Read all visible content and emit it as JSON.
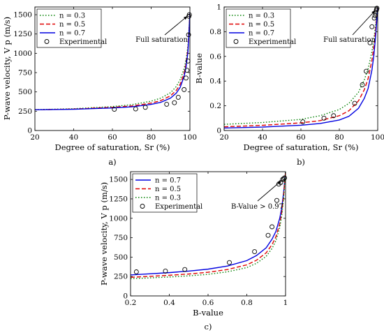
{
  "chart_data": [
    {
      "type": "line",
      "panel_label": "a)",
      "xlabel": "Degree of saturation, Sr (%)",
      "ylabel": "P-wave velocity, V p (m/s)",
      "xlim": [
        20,
        100
      ],
      "ylim": [
        0,
        1600
      ],
      "xticks": [
        20,
        40,
        60,
        80,
        100
      ],
      "yticks": [
        0,
        250,
        500,
        750,
        1000,
        1250,
        1500
      ],
      "legend_position": "top-left",
      "annotation": {
        "text": "Full saturation",
        "arrow_to": [
          99.5,
          1510
        ]
      },
      "series": [
        {
          "name": "n = 0.3",
          "color": "#008000",
          "dash": "dotted",
          "x": [
            20,
            40,
            60,
            70,
            80,
            85,
            90,
            93,
            95,
            97,
            98,
            99,
            99.5,
            100
          ],
          "y": [
            270,
            282,
            310,
            335,
            380,
            420,
            490,
            570,
            660,
            800,
            910,
            1100,
            1300,
            1530
          ]
        },
        {
          "name": "n = 0.5",
          "color": "#e00000",
          "dash": "dashed",
          "x": [
            20,
            40,
            60,
            70,
            80,
            85,
            90,
            93,
            95,
            97,
            98,
            99,
            99.5,
            100
          ],
          "y": [
            268,
            278,
            300,
            318,
            355,
            388,
            450,
            520,
            600,
            740,
            860,
            1060,
            1280,
            1530
          ]
        },
        {
          "name": "n = 0.7",
          "color": "#0000e0",
          "dash": "solid",
          "x": [
            20,
            40,
            60,
            70,
            80,
            85,
            90,
            93,
            95,
            97,
            98,
            99,
            99.5,
            100
          ],
          "y": [
            268,
            275,
            292,
            307,
            338,
            365,
            420,
            485,
            560,
            700,
            820,
            1020,
            1250,
            1530
          ]
        },
        {
          "name": "Experimental",
          "color": "#000000",
          "marker": "circle",
          "x": [
            61,
            72,
            77,
            88,
            92,
            94,
            97,
            98,
            98.5,
            99,
            99.3,
            99.5,
            99.7
          ],
          "y": [
            275,
            280,
            300,
            340,
            360,
            430,
            530,
            680,
            780,
            900,
            1240,
            1480,
            1500
          ]
        }
      ]
    },
    {
      "type": "line",
      "panel_label": "b)",
      "xlabel": "Degree of saturation, Sr (%)",
      "ylabel": "B-value",
      "xlim": [
        20,
        100
      ],
      "ylim": [
        0,
        1
      ],
      "xticks": [
        20,
        40,
        60,
        80,
        100
      ],
      "yticks": [
        0,
        0.2,
        0.4,
        0.6,
        0.8,
        1
      ],
      "legend_position": "top-left",
      "annotation": {
        "text": "Full saturation",
        "arrow_to": [
          99.5,
          0.99
        ]
      },
      "series": [
        {
          "name": "n = 0.3",
          "color": "#008000",
          "dash": "dotted",
          "x": [
            20,
            40,
            60,
            70,
            80,
            85,
            90,
            93,
            95,
            97,
            98,
            99,
            99.5,
            100
          ],
          "y": [
            0.05,
            0.065,
            0.09,
            0.12,
            0.17,
            0.22,
            0.31,
            0.41,
            0.5,
            0.64,
            0.74,
            0.87,
            0.94,
            1.0
          ]
        },
        {
          "name": "n = 0.5",
          "color": "#e00000",
          "dash": "dashed",
          "x": [
            20,
            40,
            60,
            70,
            80,
            85,
            90,
            93,
            95,
            97,
            98,
            99,
            99.5,
            100
          ],
          "y": [
            0.03,
            0.042,
            0.062,
            0.08,
            0.12,
            0.16,
            0.24,
            0.33,
            0.42,
            0.57,
            0.68,
            0.83,
            0.92,
            1.0
          ]
        },
        {
          "name": "n = 0.7",
          "color": "#0000e0",
          "dash": "solid",
          "x": [
            20,
            40,
            60,
            70,
            80,
            85,
            90,
            93,
            95,
            97,
            98,
            99,
            99.5,
            100
          ],
          "y": [
            0.02,
            0.028,
            0.043,
            0.057,
            0.085,
            0.115,
            0.18,
            0.26,
            0.34,
            0.49,
            0.61,
            0.78,
            0.89,
            1.0
          ]
        },
        {
          "name": "Experimental",
          "color": "#000000",
          "marker": "circle",
          "x": [
            61,
            72,
            77,
            88,
            92,
            94,
            96,
            97,
            98.2,
            98.6,
            99,
            99.2,
            99.4,
            99.6
          ],
          "y": [
            0.07,
            0.1,
            0.12,
            0.22,
            0.37,
            0.48,
            0.71,
            0.84,
            0.91,
            0.93,
            0.95,
            0.97,
            0.98,
            0.99
          ]
        }
      ]
    },
    {
      "type": "line",
      "panel_label": "c)",
      "xlabel": "B-value",
      "ylabel": "P-wave velocity, V p (m/s)",
      "xlim": [
        0.2,
        1
      ],
      "ylim": [
        0,
        1600
      ],
      "xticks": [
        0.2,
        0.4,
        0.6,
        0.8,
        1
      ],
      "yticks": [
        0,
        250,
        500,
        750,
        1000,
        1250,
        1500
      ],
      "legend_position": "top-left",
      "annotation": {
        "text": "B-Value > 0.97",
        "arrow_to": [
          0.985,
          1510
        ]
      },
      "series": [
        {
          "name": "n = 0.7",
          "color": "#0000e0",
          "dash": "solid",
          "x": [
            0.2,
            0.3,
            0.4,
            0.5,
            0.6,
            0.7,
            0.8,
            0.85,
            0.9,
            0.93,
            0.95,
            0.97,
            0.98,
            0.99,
            1.0
          ],
          "y": [
            270,
            285,
            300,
            320,
            345,
            385,
            455,
            520,
            620,
            730,
            830,
            1000,
            1130,
            1330,
            1600
          ]
        },
        {
          "name": "n = 0.5",
          "color": "#e00000",
          "dash": "dashed",
          "x": [
            0.2,
            0.3,
            0.4,
            0.5,
            0.6,
            0.7,
            0.8,
            0.85,
            0.9,
            0.93,
            0.95,
            0.97,
            0.98,
            0.99,
            1.0
          ],
          "y": [
            240,
            252,
            266,
            282,
            305,
            340,
            400,
            460,
            555,
            660,
            760,
            930,
            1070,
            1290,
            1600
          ]
        },
        {
          "name": "n = 0.3",
          "color": "#008000",
          "dash": "dotted",
          "x": [
            0.2,
            0.3,
            0.4,
            0.5,
            0.6,
            0.7,
            0.8,
            0.85,
            0.9,
            0.93,
            0.95,
            0.97,
            0.98,
            0.99,
            1.0
          ],
          "y": [
            222,
            232,
            244,
            258,
            278,
            310,
            365,
            420,
            510,
            610,
            710,
            880,
            1030,
            1260,
            1600
          ]
        },
        {
          "name": "Experimental",
          "color": "#000000",
          "marker": "circle",
          "x": [
            0.23,
            0.38,
            0.48,
            0.71,
            0.84,
            0.91,
            0.93,
            0.955,
            0.965,
            0.975,
            0.985,
            0.99,
            0.995
          ],
          "y": [
            310,
            320,
            340,
            430,
            570,
            780,
            890,
            1230,
            1440,
            1460,
            1500,
            1510,
            1520
          ]
        }
      ]
    }
  ]
}
